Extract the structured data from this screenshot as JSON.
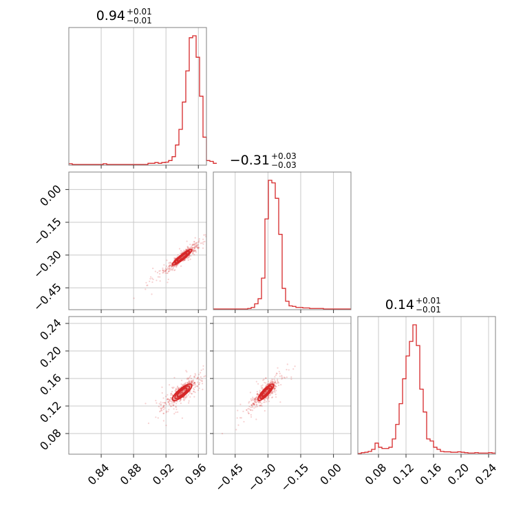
{
  "chart_data": {
    "type": "corner",
    "color": "#d62728",
    "parameters": [
      {
        "id": "p0",
        "range": [
          0.8,
          0.97
        ],
        "ticks": [
          0.84,
          0.88,
          0.92,
          0.96
        ],
        "tick_labels": [
          "0.84",
          "0.88",
          "0.92",
          "0.96"
        ],
        "title": {
          "value": "0.94",
          "plus": "+0.01",
          "minus": "−0.01"
        }
      },
      {
        "id": "p1",
        "range": [
          -0.55,
          0.08
        ],
        "ticks": [
          -0.45,
          -0.3,
          -0.15,
          0.0
        ],
        "tick_labels": [
          "−0.45",
          "−0.30",
          "−0.15",
          "0.00"
        ],
        "title": {
          "value": "−0.31",
          "plus": "+0.03",
          "minus": "−0.03"
        }
      },
      {
        "id": "p2",
        "range": [
          0.05,
          0.25
        ],
        "ticks": [
          0.08,
          0.12,
          0.16,
          0.2,
          0.24
        ],
        "tick_labels": [
          "0.08",
          "0.12",
          "0.16",
          "0.20",
          "0.24"
        ],
        "title": {
          "value": "0.14",
          "plus": "+0.01",
          "minus": "−0.01"
        }
      }
    ],
    "histograms": [
      {
        "param": 0,
        "start": 0.8,
        "width": 0.00425,
        "counts": [
          2,
          0,
          0,
          0,
          0,
          0,
          0,
          0,
          0,
          0,
          2,
          0,
          0,
          0,
          0,
          0,
          0,
          0,
          0,
          0,
          0,
          0,
          0,
          3,
          3,
          5,
          3,
          5,
          6,
          10,
          20,
          50,
          90,
          160,
          240,
          325,
          330,
          275,
          175,
          70,
          10,
          8,
          3
        ]
      },
      {
        "param": 1,
        "start": -0.55,
        "width": 0.01575,
        "counts": [
          0,
          0,
          0,
          0,
          0,
          0,
          0,
          0,
          0,
          0,
          1,
          3,
          10,
          20,
          60,
          175,
          250,
          245,
          215,
          145,
          40,
          15,
          6,
          5,
          3,
          3,
          2,
          2,
          1,
          1,
          1,
          1,
          0,
          0,
          0,
          0,
          0,
          0,
          0,
          0
        ]
      },
      {
        "param": 2,
        "start": 0.05,
        "width": 0.005,
        "counts": [
          0,
          2,
          3,
          5,
          10,
          25,
          15,
          12,
          12,
          15,
          35,
          70,
          120,
          180,
          235,
          270,
          310,
          260,
          155,
          100,
          35,
          30,
          15,
          10,
          5,
          4,
          4,
          3,
          3,
          4,
          3,
          2,
          1,
          1,
          2,
          1,
          1,
          1,
          2,
          1
        ]
      }
    ],
    "pairs": [
      {
        "x": 0,
        "y": 1,
        "center": [
          0.94,
          -0.31
        ],
        "sigma": [
          0.01,
          0.03
        ],
        "rho": 0.92
      },
      {
        "x": 0,
        "y": 2,
        "center": [
          0.94,
          0.14
        ],
        "sigma": [
          0.01,
          0.01
        ],
        "rho": 0.82
      },
      {
        "x": 1,
        "y": 2,
        "center": [
          -0.31,
          0.14
        ],
        "sigma": [
          0.03,
          0.01
        ],
        "rho": 0.85
      }
    ]
  }
}
